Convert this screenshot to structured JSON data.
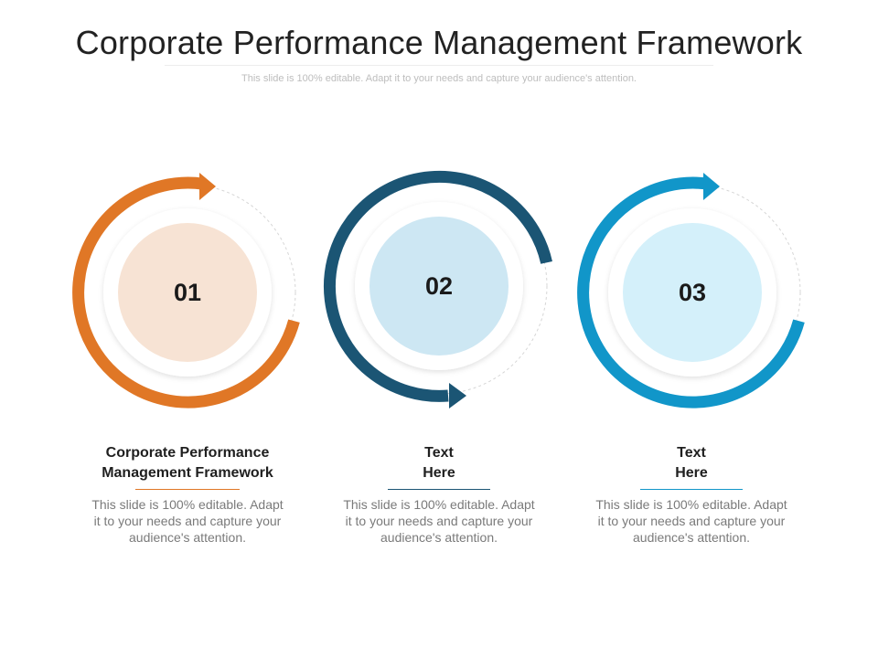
{
  "slide": {
    "title": "Corporate Performance Management Framework",
    "subtitle": "This slide is 100% editable. Adapt it to your needs and capture your audience's attention."
  },
  "items": [
    {
      "number": "01",
      "heading_line1": "Corporate Performance",
      "heading_line2": "Management Framework",
      "body_line1": "This slide is 100% editable. Adapt",
      "body_line2": "it to your needs and capture your",
      "body_line3": "audience's attention.",
      "accent_color": "#E07726",
      "fill_color": "#F7E3D4"
    },
    {
      "number": "02",
      "heading_line1": "Text",
      "heading_line2": "Here",
      "body_line1": "This slide is 100% editable. Adapt",
      "body_line2": "it to your needs and capture your",
      "body_line3": "audience's attention.",
      "accent_color": "#1B5574",
      "fill_color": "#CDE7F3"
    },
    {
      "number": "03",
      "heading_line1": "Text",
      "heading_line2": "Here",
      "body_line1": "This slide is 100% editable. Adapt",
      "body_line2": "it to your needs and capture your",
      "body_line3": "audience's attention.",
      "accent_color": "#1196C9",
      "fill_color": "#D4F0FA"
    }
  ]
}
